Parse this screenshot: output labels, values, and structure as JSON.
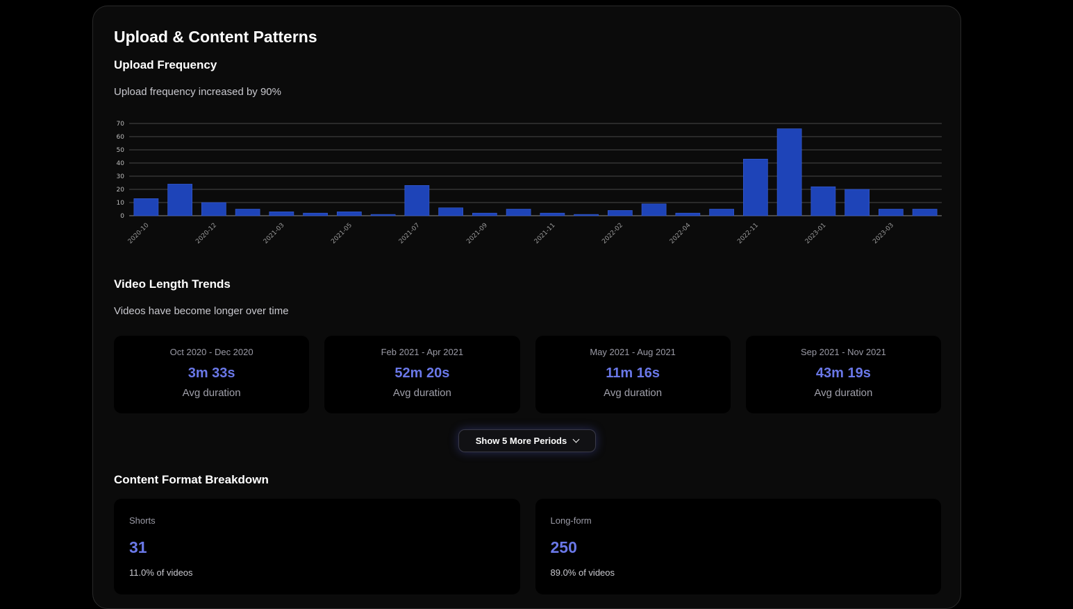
{
  "page": {
    "title": "Upload & Content Patterns"
  },
  "upload_frequency": {
    "title": "Upload Frequency",
    "description": "Upload frequency increased by 90%"
  },
  "chart_data": {
    "type": "bar",
    "title": "",
    "xlabel": "",
    "ylabel": "",
    "ylim": [
      0,
      70
    ],
    "yticks": [
      0,
      10,
      20,
      30,
      40,
      50,
      60,
      70
    ],
    "grid": true,
    "bar_color": "#1e44b8",
    "categories": [
      "2020-10",
      "2020-11",
      "2020-12",
      "2021-01",
      "2021-03",
      "2021-04",
      "2021-05",
      "2021-06",
      "2021-07",
      "2021-08",
      "2021-09",
      "2021-10",
      "2021-11",
      "2022-01",
      "2022-02",
      "2022-03",
      "2022-04",
      "2022-10",
      "2022-11",
      "2022-12",
      "2023-01",
      "2023-02",
      "2023-03",
      "2023-04"
    ],
    "shown_tick_labels": [
      "2020-10",
      "2020-12",
      "2021-03",
      "2021-05",
      "2021-07",
      "2021-09",
      "2021-11",
      "2022-02",
      "2022-04",
      "2022-11",
      "2023-01",
      "2023-03"
    ],
    "values": [
      13,
      24,
      10,
      5,
      3,
      2,
      3,
      1,
      23,
      6,
      2,
      5,
      2,
      1,
      4,
      9,
      2,
      5,
      43,
      66,
      22,
      20,
      5,
      5
    ]
  },
  "video_length": {
    "title": "Video Length Trends",
    "description": "Videos have become longer over time",
    "periods": [
      {
        "period": "Oct 2020 - Dec 2020",
        "value": "3m 33s",
        "caption": "Avg duration"
      },
      {
        "period": "Feb 2021 - Apr 2021",
        "value": "52m 20s",
        "caption": "Avg duration"
      },
      {
        "period": "May 2021 - Aug 2021",
        "value": "11m 16s",
        "caption": "Avg duration"
      },
      {
        "period": "Sep 2021 - Nov 2021",
        "value": "43m 19s",
        "caption": "Avg duration"
      }
    ],
    "more_button": "Show 5 More Periods"
  },
  "content_format": {
    "title": "Content Format Breakdown",
    "items": [
      {
        "label": "Shorts",
        "count": "31",
        "share": "11.0% of videos"
      },
      {
        "label": "Long-form",
        "count": "250",
        "share": "89.0% of videos"
      }
    ]
  },
  "colors": {
    "accent": "#6a78e8",
    "bar": "#1e44b8",
    "background": "#000000",
    "panel": "#0b0b0b"
  },
  "icons": {
    "more_button_icon": "chevron-down-icon"
  }
}
